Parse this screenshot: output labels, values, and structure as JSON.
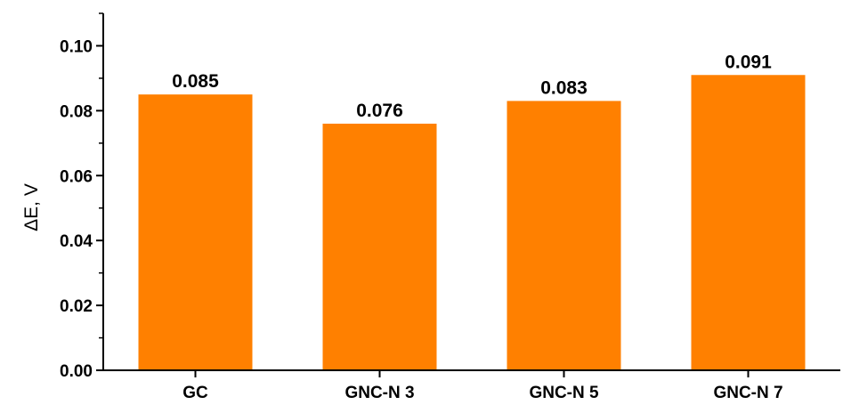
{
  "chart_data": {
    "type": "bar",
    "title": "",
    "xlabel": "",
    "ylabel": "ΔE, V",
    "categories": [
      "GC",
      "GNC-N 3",
      "GNC-N 5",
      "GNC-N 7"
    ],
    "values": [
      0.085,
      0.076,
      0.083,
      0.091
    ],
    "data_labels": [
      "0.085",
      "0.076",
      "0.083",
      "0.091"
    ],
    "ylim": [
      0,
      0.11
    ],
    "yticks": [
      "0.00",
      "0.02",
      "0.04",
      "0.06",
      "0.08",
      "0.10"
    ],
    "ytick_values": [
      0,
      0.02,
      0.04,
      0.06,
      0.08,
      0.1
    ],
    "bar_color": "#FF8000",
    "grid": false,
    "legend": "none"
  }
}
